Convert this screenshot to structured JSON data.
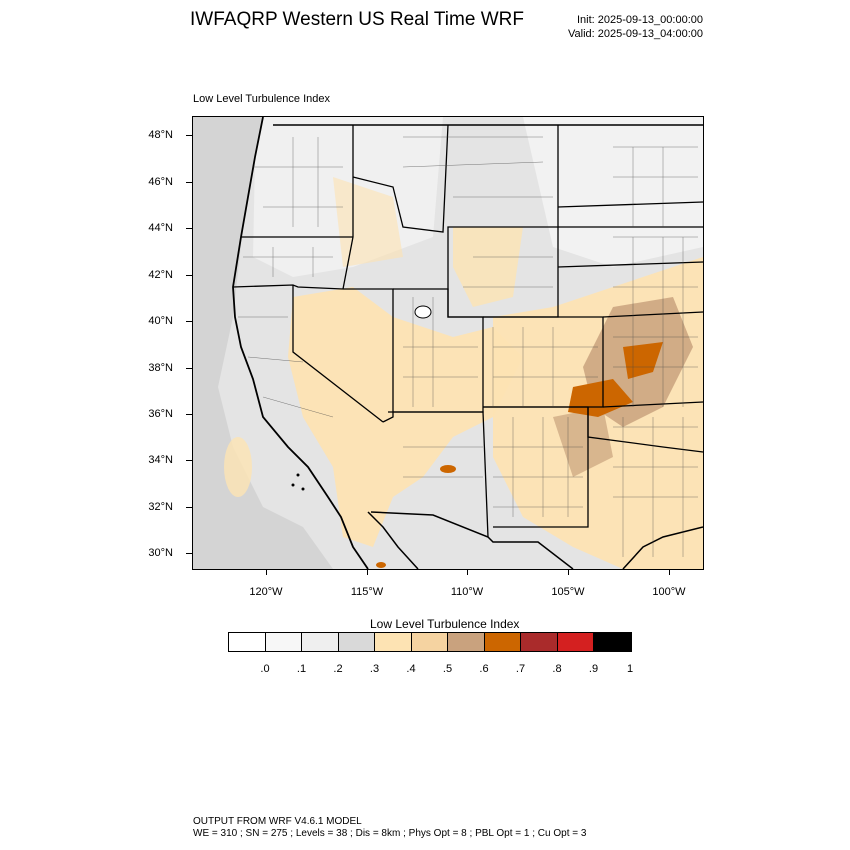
{
  "header": {
    "title": "IWFAQRP Western US Real Time WRF",
    "init": "Init: 2025-09-13_00:00:00",
    "valid": "Valid: 2025-09-13_04:00:00"
  },
  "panel": {
    "label": "Low Level Turbulence Index"
  },
  "map": {
    "lat_labels": [
      "48°N",
      "46°N",
      "44°N",
      "42°N",
      "40°N",
      "38°N",
      "36°N",
      "34°N",
      "32°N",
      "30°N"
    ],
    "lon_labels": [
      "120°W",
      "115°W",
      "110°W",
      "105°W",
      "100°W"
    ],
    "fill_colors": {
      "ocean": "#d6d6d6",
      "land_low": "#ececec",
      "land_mid": "#dcdcdc",
      "level_05": "#fde3b3",
      "level_06": "#f5d3a1",
      "level_07": "#c9a27e",
      "level_08": "#cc6600",
      "level_09": "#aa2b2b"
    }
  },
  "colorbar": {
    "title": "Low Level Turbulence Index",
    "colors": [
      "#ffffff",
      "#f7f7f7",
      "#efefef",
      "#d9d9d9",
      "#fde3b3",
      "#f5d3a1",
      "#c9a27e",
      "#cc6600",
      "#aa2b2b",
      "#d42020",
      "#000000"
    ],
    "labels": [
      ".0",
      ".1",
      ".2",
      ".3",
      ".4",
      ".5",
      ".6",
      ".7",
      ".8",
      ".9",
      "1"
    ]
  },
  "footer": {
    "line1": "OUTPUT FROM WRF V4.6.1 MODEL",
    "line2": "WE = 310 ; SN = 275 ; Levels = 38 ; Dis = 8km ; Phys Opt = 8 ; PBL Opt = 1 ; Cu Opt = 3"
  }
}
